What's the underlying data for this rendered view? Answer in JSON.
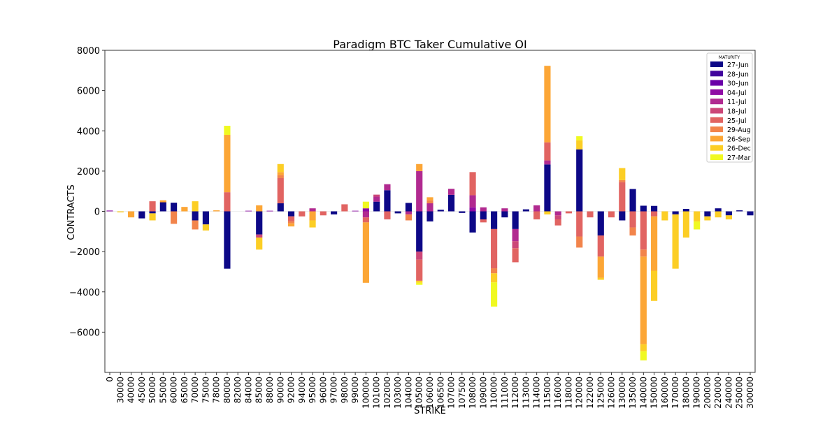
{
  "chart_data": {
    "type": "bar",
    "stacked": true,
    "title": "Paradigm BTC Taker Cumulative OI",
    "xlabel": "STRIKE",
    "ylabel": "CONTRACTS",
    "ylim": [
      -8000,
      8000
    ],
    "yticks": [
      -6000,
      -4000,
      -2000,
      0,
      2000,
      4000,
      6000,
      8000
    ],
    "legend": {
      "title": "MATURITY",
      "position": "top-right"
    },
    "categories": [
      "0",
      "30000",
      "40000",
      "45000",
      "50000",
      "55000",
      "60000",
      "65000",
      "70000",
      "75000",
      "78000",
      "80000",
      "82000",
      "84000",
      "85000",
      "88000",
      "90000",
      "92000",
      "94000",
      "95000",
      "96000",
      "97000",
      "98000",
      "99000",
      "100000",
      "101000",
      "102000",
      "103000",
      "104000",
      "105000",
      "106000",
      "106500",
      "107000",
      "107500",
      "108000",
      "109000",
      "110000",
      "111000",
      "112000",
      "113000",
      "114000",
      "115000",
      "116000",
      "118000",
      "120000",
      "122000",
      "125000",
      "126000",
      "130000",
      "135000",
      "140000",
      "150000",
      "160000",
      "170000",
      "180000",
      "190000",
      "200000",
      "220000",
      "240000",
      "250000",
      "300000"
    ],
    "series": [
      {
        "name": "27-Jun",
        "color": "#0d0887",
        "values": [
          0,
          0,
          0,
          -350,
          -100,
          450,
          430,
          0,
          -450,
          -650,
          0,
          -2850,
          0,
          0,
          -1150,
          0,
          400,
          -250,
          0,
          0,
          0,
          -150,
          0,
          0,
          0,
          480,
          1050,
          -100,
          420,
          -2000,
          -500,
          80,
          820,
          -80,
          -1050,
          -400,
          -880,
          -300,
          -880,
          100,
          0,
          2330,
          0,
          0,
          3080,
          0,
          -1200,
          0,
          -450,
          1110,
          280,
          270,
          0,
          -150,
          120,
          0,
          -250,
          150,
          -200,
          50,
          -200
        ]
      },
      {
        "name": "28-Jun",
        "color": "#41049d",
        "values": [
          0,
          0,
          0,
          0,
          0,
          0,
          0,
          0,
          0,
          0,
          0,
          0,
          0,
          0,
          0,
          0,
          0,
          0,
          0,
          0,
          0,
          0,
          0,
          0,
          0,
          0,
          0,
          0,
          0,
          0,
          0,
          0,
          0,
          0,
          0,
          0,
          0,
          0,
          0,
          0,
          0,
          0,
          0,
          0,
          0,
          0,
          0,
          0,
          0,
          0,
          0,
          0,
          0,
          0,
          0,
          0,
          0,
          0,
          0,
          0,
          0
        ]
      },
      {
        "name": "30-Jun",
        "color": "#6a00a8",
        "values": [
          0,
          0,
          0,
          0,
          0,
          0,
          0,
          0,
          0,
          0,
          0,
          0,
          0,
          0,
          0,
          0,
          0,
          0,
          0,
          0,
          0,
          0,
          0,
          0,
          0,
          0,
          0,
          0,
          0,
          0,
          0,
          0,
          0,
          0,
          0,
          0,
          0,
          0,
          0,
          0,
          0,
          0,
          0,
          0,
          0,
          0,
          0,
          0,
          0,
          0,
          0,
          0,
          0,
          0,
          0,
          0,
          0,
          0,
          0,
          0,
          0
        ]
      },
      {
        "name": "04-Jul",
        "color": "#8f0da4",
        "values": [
          40,
          0,
          0,
          0,
          0,
          0,
          0,
          0,
          0,
          0,
          0,
          0,
          0,
          30,
          0,
          30,
          0,
          0,
          0,
          0,
          0,
          0,
          0,
          30,
          150,
          0,
          0,
          0,
          0,
          0,
          0,
          0,
          0,
          0,
          200,
          0,
          0,
          0,
          0,
          0,
          0,
          0,
          0,
          0,
          0,
          0,
          0,
          0,
          0,
          0,
          0,
          0,
          0,
          0,
          0,
          0,
          0,
          0,
          0,
          0,
          0
        ]
      },
      {
        "name": "11-Jul",
        "color": "#b12a90",
        "values": [
          0,
          0,
          0,
          0,
          0,
          0,
          0,
          0,
          0,
          0,
          0,
          0,
          0,
          0,
          0,
          0,
          0,
          0,
          0,
          150,
          0,
          0,
          0,
          0,
          -300,
          250,
          300,
          0,
          -150,
          2000,
          400,
          0,
          300,
          0,
          600,
          200,
          0,
          150,
          -600,
          0,
          300,
          200,
          -200,
          0,
          0,
          0,
          0,
          0,
          0,
          0,
          0,
          0,
          0,
          0,
          0,
          0,
          0,
          0,
          0,
          0,
          0
        ]
      },
      {
        "name": "18-Jul",
        "color": "#cc4778",
        "values": [
          0,
          0,
          0,
          0,
          0,
          0,
          0,
          0,
          0,
          0,
          0,
          0,
          0,
          0,
          -150,
          0,
          0,
          0,
          0,
          0,
          0,
          0,
          0,
          0,
          0,
          100,
          0,
          0,
          0,
          -400,
          0,
          0,
          0,
          0,
          0,
          0,
          0,
          0,
          -350,
          0,
          0,
          0,
          -200,
          0,
          0,
          0,
          0,
          0,
          0,
          0,
          0,
          0,
          0,
          0,
          0,
          0,
          0,
          0,
          0,
          0,
          0
        ]
      },
      {
        "name": "25-Jul",
        "color": "#e16462",
        "values": [
          0,
          0,
          0,
          0,
          500,
          0,
          0,
          0,
          0,
          0,
          0,
          950,
          0,
          0,
          0,
          0,
          1250,
          -250,
          -250,
          0,
          -200,
          0,
          350,
          0,
          -250,
          0,
          -400,
          0,
          0,
          -1050,
          0,
          0,
          0,
          0,
          1150,
          -150,
          -1950,
          0,
          -700,
          0,
          -400,
          900,
          -300,
          -100,
          -1250,
          -300,
          -1050,
          -300,
          1450,
          -800,
          -1900,
          -250,
          0,
          0,
          0,
          0,
          0,
          0,
          0,
          0,
          0
        ]
      },
      {
        "name": "29-Aug",
        "color": "#f2844b",
        "values": [
          0,
          0,
          0,
          0,
          0,
          0,
          -620,
          0,
          -450,
          0,
          0,
          0,
          0,
          0,
          0,
          0,
          150,
          -100,
          0,
          0,
          0,
          0,
          0,
          0,
          0,
          0,
          0,
          0,
          -300,
          0,
          150,
          0,
          0,
          0,
          0,
          0,
          -250,
          0,
          0,
          0,
          0,
          0,
          0,
          0,
          -550,
          0,
          0,
          0,
          100,
          -400,
          -350,
          0,
          0,
          0,
          0,
          0,
          0,
          0,
          0,
          0,
          0
        ]
      },
      {
        "name": "26-Sep",
        "color": "#fca636",
        "values": [
          0,
          0,
          -300,
          0,
          0,
          100,
          0,
          220,
          0,
          0,
          50,
          2850,
          0,
          0,
          300,
          0,
          150,
          -150,
          0,
          -450,
          0,
          0,
          0,
          0,
          -3000,
          0,
          0,
          0,
          0,
          350,
          150,
          0,
          0,
          0,
          0,
          0,
          0,
          0,
          0,
          0,
          0,
          3800,
          0,
          0,
          0,
          0,
          -1050,
          0,
          0,
          0,
          -4350,
          -2700,
          0,
          0,
          0,
          0,
          0,
          0,
          0,
          0,
          0
        ]
      },
      {
        "name": "26-Dec",
        "color": "#fcce25",
        "values": [
          0,
          -50,
          0,
          0,
          -350,
          0,
          0,
          0,
          500,
          -300,
          0,
          0,
          0,
          0,
          -600,
          0,
          400,
          0,
          0,
          -350,
          0,
          0,
          0,
          0,
          0,
          0,
          0,
          0,
          0,
          -100,
          0,
          0,
          0,
          0,
          0,
          0,
          -450,
          0,
          0,
          0,
          0,
          -150,
          0,
          0,
          450,
          0,
          -100,
          0,
          600,
          0,
          -350,
          -1500,
          -450,
          -2700,
          -1300,
          -500,
          -200,
          -300,
          -200,
          0,
          0
        ]
      },
      {
        "name": "27-Mar",
        "color": "#f0f921",
        "values": [
          0,
          0,
          0,
          0,
          0,
          0,
          0,
          0,
          0,
          0,
          0,
          450,
          0,
          0,
          0,
          0,
          0,
          0,
          0,
          0,
          0,
          0,
          0,
          0,
          330,
          0,
          0,
          0,
          0,
          -100,
          0,
          0,
          0,
          0,
          0,
          0,
          -1200,
          0,
          0,
          0,
          0,
          0,
          0,
          0,
          200,
          0,
          0,
          0,
          0,
          0,
          -450,
          0,
          0,
          0,
          0,
          -400,
          0,
          0,
          0,
          0,
          0
        ]
      }
    ]
  }
}
